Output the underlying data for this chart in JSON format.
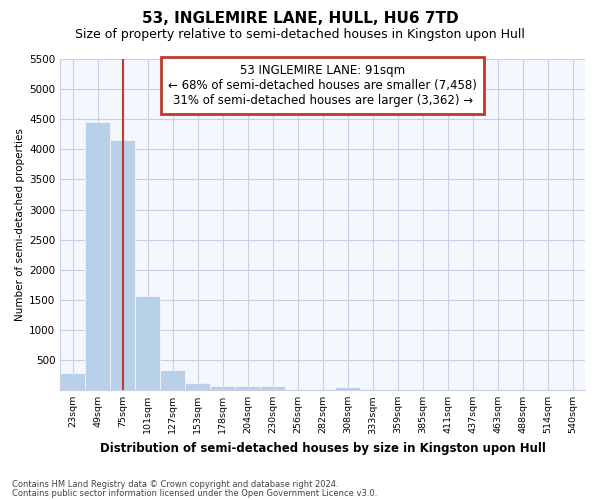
{
  "title": "53, INGLEMIRE LANE, HULL, HU6 7TD",
  "subtitle": "Size of property relative to semi-detached houses in Kingston upon Hull",
  "xlabel": "Distribution of semi-detached houses by size in Kingston upon Hull",
  "ylabel": "Number of semi-detached properties",
  "footnote1": "Contains HM Land Registry data © Crown copyright and database right 2024.",
  "footnote2": "Contains public sector information licensed under the Open Government Licence v3.0.",
  "annotation_title": "53 INGLEMIRE LANE: 91sqm",
  "annotation_line1": "← 68% of semi-detached houses are smaller (7,458)",
  "annotation_line2": "31% of semi-detached houses are larger (3,362) →",
  "bar_labels": [
    "23sqm",
    "49sqm",
    "75sqm",
    "101sqm",
    "127sqm",
    "153sqm",
    "178sqm",
    "204sqm",
    "230sqm",
    "256sqm",
    "282sqm",
    "308sqm",
    "333sqm",
    "359sqm",
    "385sqm",
    "411sqm",
    "437sqm",
    "463sqm",
    "488sqm",
    "514sqm",
    "540sqm"
  ],
  "bar_values": [
    280,
    4450,
    4150,
    1560,
    330,
    120,
    75,
    65,
    65,
    0,
    0,
    60,
    0,
    0,
    0,
    0,
    0,
    0,
    0,
    0,
    0
  ],
  "bar_color": "#b8d0e8",
  "red_line_color": "#c0392b",
  "red_line_x": 2.0,
  "ylim": [
    0,
    5500
  ],
  "yticks": [
    0,
    500,
    1000,
    1500,
    2000,
    2500,
    3000,
    3500,
    4000,
    4500,
    5000,
    5500
  ],
  "bg_color": "#ffffff",
  "plot_bg_color": "#f5f7ff",
  "grid_color": "#c8d0e8",
  "annotation_box_facecolor": "#ffffff",
  "annotation_box_edgecolor": "#c0392b",
  "title_fontsize": 11,
  "subtitle_fontsize": 9
}
